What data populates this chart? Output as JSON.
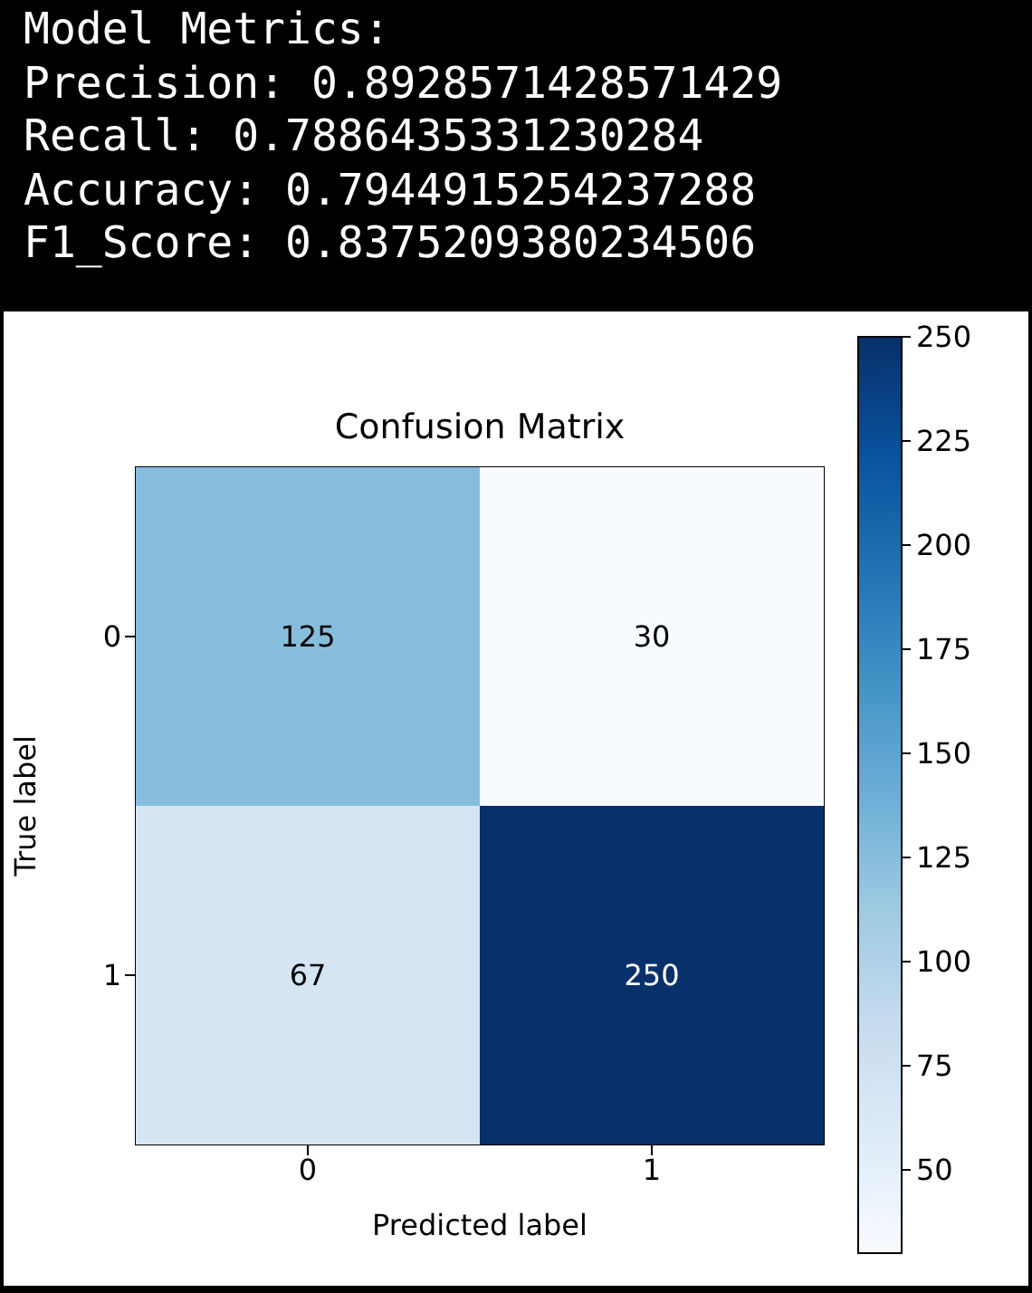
{
  "chart_data": {
    "type": "heatmap",
    "title": "Confusion Matrix",
    "xlabel": "Predicted label",
    "ylabel": "True label",
    "annotations": [
      "Model Metrics:",
      "Precision: 0.8928571428571429",
      "Recall: 0.7886435331230284",
      "Accuracy: 0.7944915254237288",
      "F1_Score: 0.8375209380234506"
    ],
    "categories": [
      "0",
      "1"
    ],
    "y_categories": [
      "0",
      "1"
    ],
    "cells": [
      [
        125,
        30
      ],
      [
        67,
        250
      ]
    ],
    "data_labels": true,
    "clim": [
      30,
      250
    ],
    "cticks": [
      50,
      75,
      100,
      125,
      150,
      175,
      200,
      225,
      250
    ]
  }
}
